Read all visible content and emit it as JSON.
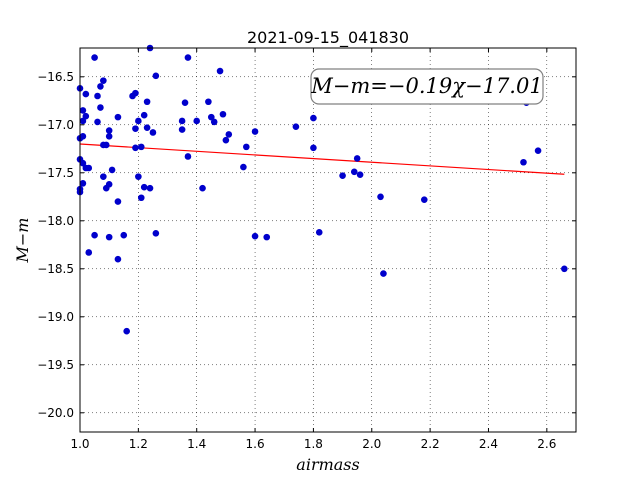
{
  "chart_data": {
    "type": "scatter",
    "title": "2021-09-15_041830",
    "xlabel": "airmass",
    "ylabel": "M−m",
    "xlim": [
      1.0,
      2.7
    ],
    "ylim": [
      -20.2,
      -16.2
    ],
    "y_inverted": true,
    "grid": true,
    "x_ticks": [
      1.0,
      1.2,
      1.4,
      1.6,
      1.8,
      2.0,
      2.2,
      2.4,
      2.6
    ],
    "x_tick_labels": [
      "1.0",
      "1.2",
      "1.4",
      "1.6",
      "1.8",
      "2.0",
      "2.2",
      "2.4",
      "2.6"
    ],
    "y_ticks": [
      -16.5,
      -17.0,
      -17.5,
      -18.0,
      -18.5,
      -19.0,
      -19.5,
      -20.0
    ],
    "y_tick_labels": [
      "−16.5",
      "−17.0",
      "−17.5",
      "−18.0",
      "−18.5",
      "−19.0",
      "−19.5",
      "−20.0"
    ],
    "annotation": "M−m=−0.19χ−17.01",
    "fit": {
      "slope": -0.19,
      "intercept": -17.01,
      "x_range": [
        1.0,
        2.66
      ],
      "color": "#ff0000"
    },
    "marker_color": "#0000cc",
    "points": [
      [
        1.0,
        -16.62
      ],
      [
        1.0,
        -17.14
      ],
      [
        1.0,
        -17.36
      ],
      [
        1.0,
        -17.7
      ],
      [
        1.0,
        -17.67
      ],
      [
        1.01,
        -16.85
      ],
      [
        1.01,
        -16.96
      ],
      [
        1.01,
        -17.12
      ],
      [
        1.01,
        -17.4
      ],
      [
        1.01,
        -17.61
      ],
      [
        1.02,
        -16.68
      ],
      [
        1.02,
        -16.91
      ],
      [
        1.02,
        -17.45
      ],
      [
        1.03,
        -17.45
      ],
      [
        1.03,
        -18.33
      ],
      [
        1.05,
        -18.15
      ],
      [
        1.05,
        -16.3
      ],
      [
        1.06,
        -16.7
      ],
      [
        1.06,
        -16.97
      ],
      [
        1.07,
        -16.6
      ],
      [
        1.07,
        -16.82
      ],
      [
        1.08,
        -16.54
      ],
      [
        1.08,
        -17.21
      ],
      [
        1.08,
        -17.54
      ],
      [
        1.09,
        -17.21
      ],
      [
        1.09,
        -17.66
      ],
      [
        1.1,
        -17.12
      ],
      [
        1.1,
        -17.06
      ],
      [
        1.1,
        -17.62
      ],
      [
        1.1,
        -18.17
      ],
      [
        1.11,
        -17.47
      ],
      [
        1.13,
        -16.92
      ],
      [
        1.13,
        -17.8
      ],
      [
        1.13,
        -18.4
      ],
      [
        1.15,
        -18.15
      ],
      [
        1.16,
        -19.15
      ],
      [
        1.18,
        -16.7
      ],
      [
        1.19,
        -17.04
      ],
      [
        1.19,
        -17.24
      ],
      [
        1.19,
        -16.67
      ],
      [
        1.2,
        -16.96
      ],
      [
        1.2,
        -17.54
      ],
      [
        1.21,
        -17.23
      ],
      [
        1.21,
        -17.76
      ],
      [
        1.22,
        -16.9
      ],
      [
        1.22,
        -17.65
      ],
      [
        1.23,
        -16.76
      ],
      [
        1.23,
        -17.03
      ],
      [
        1.24,
        -16.2
      ],
      [
        1.24,
        -17.66
      ],
      [
        1.25,
        -17.08
      ],
      [
        1.26,
        -16.49
      ],
      [
        1.26,
        -18.13
      ],
      [
        1.35,
        -17.05
      ],
      [
        1.35,
        -16.96
      ],
      [
        1.36,
        -16.77
      ],
      [
        1.37,
        -17.33
      ],
      [
        1.37,
        -16.3
      ],
      [
        1.4,
        -16.96
      ],
      [
        1.42,
        -17.66
      ],
      [
        1.44,
        -16.76
      ],
      [
        1.45,
        -16.92
      ],
      [
        1.46,
        -16.97
      ],
      [
        1.48,
        -16.44
      ],
      [
        1.49,
        -16.89
      ],
      [
        1.5,
        -17.16
      ],
      [
        1.51,
        -17.1
      ],
      [
        1.56,
        -17.44
      ],
      [
        1.57,
        -17.23
      ],
      [
        1.6,
        -17.07
      ],
      [
        1.6,
        -18.16
      ],
      [
        1.64,
        -18.17
      ],
      [
        1.74,
        -17.02
      ],
      [
        1.8,
        -16.93
      ],
      [
        1.8,
        -17.24
      ],
      [
        1.82,
        -18.12
      ],
      [
        1.9,
        -17.53
      ],
      [
        1.94,
        -17.49
      ],
      [
        1.95,
        -17.35
      ],
      [
        1.96,
        -17.52
      ],
      [
        2.03,
        -17.75
      ],
      [
        2.04,
        -18.55
      ],
      [
        2.18,
        -17.78
      ],
      [
        2.52,
        -17.39
      ],
      [
        2.53,
        -16.77
      ],
      [
        2.57,
        -17.27
      ],
      [
        2.66,
        -18.5
      ]
    ]
  }
}
